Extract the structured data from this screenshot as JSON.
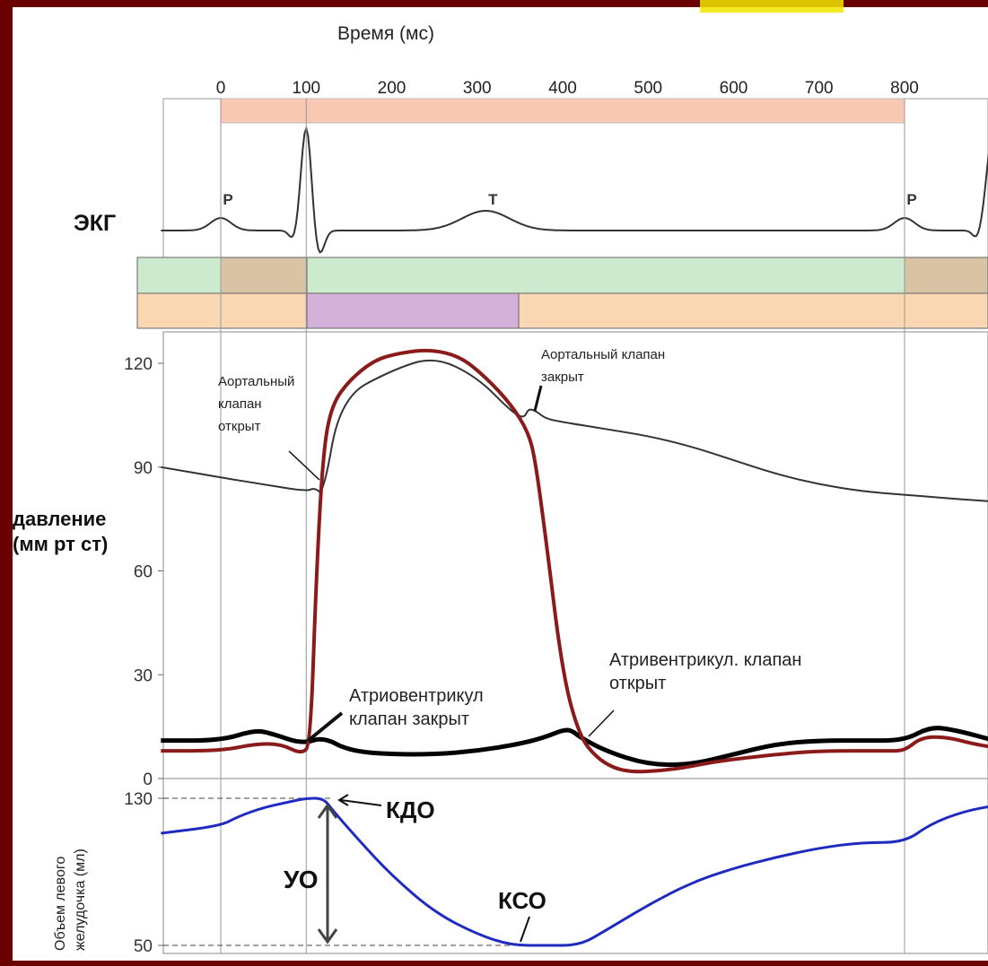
{
  "colors": {
    "frame": "#6b0000",
    "panel": "#ffffff",
    "title_accent": "#f2e600",
    "band_top": "#f9c9b4",
    "band_green": "#cdeacf",
    "band_tan": "#d8c3a4",
    "band_peach": "#f8d7b2",
    "band_purple": "#d3b1d9",
    "ventricle_line": "#8b1a1a",
    "aorta_line": "#333333",
    "atrium_line": "#000000",
    "volume_line": "#1f2bbf"
  },
  "chart_data": {
    "type": "line",
    "title": "",
    "top_axis": {
      "label": "Время (мс)",
      "ticks": [
        0,
        100,
        200,
        300,
        400,
        500,
        600,
        700,
        800
      ],
      "range_ms": [
        -70,
        905
      ]
    },
    "ecg": {
      "label": "ЭКГ",
      "wave_labels": [
        {
          "text": "P",
          "t": 0
        },
        {
          "text": "T",
          "t": 310
        },
        {
          "text": "P",
          "t": 800
        }
      ]
    },
    "pressure": {
      "ylabel_line1": "давление",
      "ylabel_line2": "(мм рт ст)",
      "yticks": [
        "120",
        "90",
        "60",
        "30",
        "0"
      ],
      "ylim": [
        0,
        128
      ],
      "series": [
        {
          "key": "lv",
          "x": [
            -70,
            0,
            40,
            70,
            95,
            105,
            112,
            120,
            130,
            150,
            180,
            210,
            245,
            280,
            310,
            340,
            360,
            368,
            380,
            400,
            420,
            440,
            460,
            480,
            500,
            540,
            580,
            650,
            700,
            780,
            800,
            820,
            850,
            880,
            905
          ],
          "y": [
            8,
            8,
            10,
            10,
            7,
            10,
            60,
            95,
            108,
            115,
            121,
            123,
            124,
            122,
            116,
            108,
            100,
            92,
            70,
            30,
            12,
            6,
            3,
            2,
            2,
            3,
            5,
            7,
            8,
            8,
            8,
            12,
            12,
            10,
            9
          ]
        },
        {
          "key": "aorta",
          "x": [
            -70,
            0,
            50,
            100,
            110,
            120,
            140,
            200,
            250,
            300,
            340,
            355,
            360,
            370,
            380,
            400,
            450,
            500,
            550,
            600,
            650,
            700,
            750,
            800,
            850,
            905
          ],
          "y": [
            90,
            87,
            85,
            83,
            84,
            82,
            110,
            118,
            122,
            116,
            106,
            104,
            107,
            106,
            104,
            103,
            101,
            99,
            96,
            92,
            88,
            85,
            83,
            82,
            81,
            80
          ]
        },
        {
          "key": "atrium",
          "x": [
            -70,
            0,
            40,
            60,
            95,
            120,
            150,
            200,
            250,
            300,
            350,
            380,
            400,
            410,
            420,
            450,
            500,
            550,
            600,
            650,
            700,
            750,
            800,
            830,
            860,
            905
          ],
          "y": [
            11,
            11,
            14,
            13,
            10,
            12,
            8,
            7,
            7,
            8,
            10,
            12,
            14,
            14,
            12,
            8,
            4,
            4,
            7,
            10,
            11,
            11,
            11,
            15,
            14,
            11
          ]
        }
      ],
      "annotations": [
        {
          "lines": [
            "Аортальный",
            "клапан",
            "открыт"
          ]
        },
        {
          "lines": [
            "Аортальный клапан",
            "закрыт"
          ]
        },
        {
          "lines": [
            "Атриовентрикул",
            "клапан закрыт"
          ]
        },
        {
          "lines": [
            "Атривентрикул. клапан",
            "открыт"
          ]
        }
      ]
    },
    "volume": {
      "ylabel_line1": "Объем левого",
      "ylabel_line2": "желудочка (мл)",
      "yticks": [
        "130",
        "50"
      ],
      "ylim": [
        48,
        131
      ],
      "x": [
        -70,
        0,
        20,
        50,
        80,
        100,
        120,
        130,
        160,
        200,
        250,
        300,
        340,
        380,
        420,
        450,
        500,
        550,
        600,
        650,
        700,
        750,
        800,
        830,
        870,
        905
      ],
      "y": [
        111,
        115,
        120,
        125,
        128,
        130,
        130,
        124,
        108,
        88,
        68,
        56,
        50,
        50,
        50,
        58,
        72,
        84,
        92,
        98,
        103,
        106,
        106,
        116,
        123,
        126
      ],
      "labels": [
        "КДО",
        "УО",
        "КСО"
      ]
    }
  }
}
